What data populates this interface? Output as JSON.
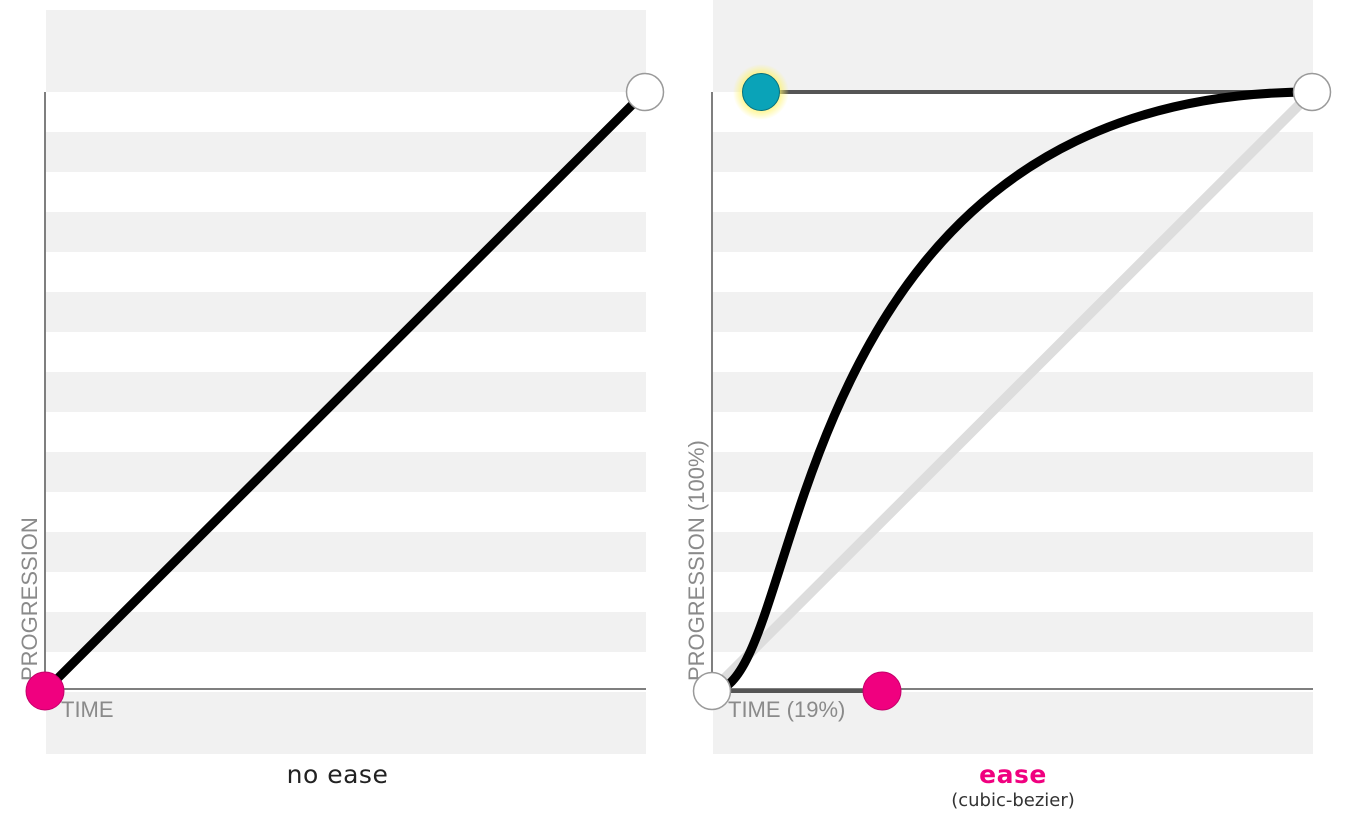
{
  "colors": {
    "stripe": "#f1f1f1",
    "curve": "#000000",
    "axis": "#555555",
    "accent": "#f0007f",
    "handle_teal": "#0aa3b8",
    "handle_glow": "#fff36a",
    "endpoint_fill": "#ffffff",
    "endpoint_stroke": "#9a9a9a",
    "reference_line": "#dddddd"
  },
  "left_panel": {
    "caption": "no ease",
    "y_axis_label": "PROGRESSION",
    "x_axis_label": "TIME"
  },
  "right_panel": {
    "caption": "ease",
    "caption_sub": "(cubic-bezier)",
    "y_axis_label": "PROGRESSION (100%)",
    "x_axis_label": "TIME (19%)",
    "control_point_1": {
      "time": 0.19,
      "progression": 0.0
    },
    "control_point_2": {
      "time": 0.0,
      "progression": 1.0
    }
  }
}
